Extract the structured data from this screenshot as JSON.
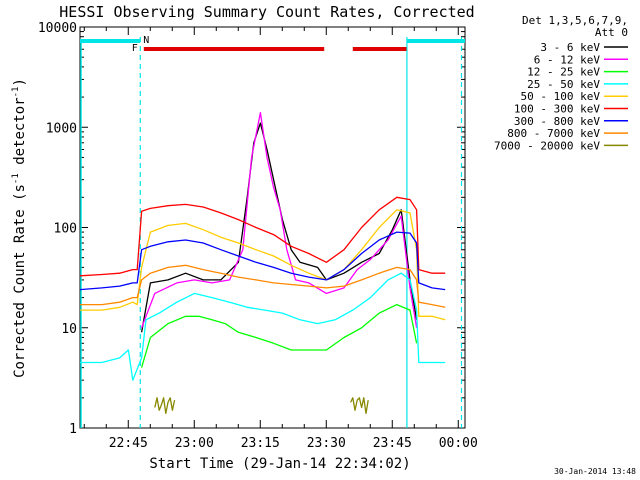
{
  "chart_data": {
    "type": "line",
    "title": "HESSI Observing Summary Count Rates, Corrected",
    "xlabel": "Start Time (29-Jan-14 22:34:02)",
    "ylabel_main": "Corrected Count Rate (s",
    "ylabel_sup1": "-1",
    "ylabel_mid": " detector",
    "ylabel_sup2": "-1",
    "ylabel_end": ")",
    "yscale": "log",
    "ylim": [
      1,
      10000
    ],
    "xlim_minutes": [
      0,
      87.5
    ],
    "x_ticks": [
      {
        "label": "22:45",
        "minute": 10.97
      },
      {
        "label": "23:00",
        "minute": 25.97
      },
      {
        "label": "23:15",
        "minute": 40.97
      },
      {
        "label": "23:30",
        "minute": 55.97
      },
      {
        "label": "23:45",
        "minute": 70.97
      },
      {
        "label": "00:00",
        "minute": 85.97
      }
    ],
    "y_ticks": [
      {
        "label": "1",
        "value": 1
      },
      {
        "label": "10",
        "value": 10
      },
      {
        "label": "100",
        "value": 100
      },
      {
        "label": "1000",
        "value": 1000
      },
      {
        "label": "10000",
        "value": 10000
      }
    ],
    "legend_header_1": "Det 1,3,5,6,7,9,",
    "legend_header_2": "Att 0",
    "legend_position": "right",
    "series": [
      {
        "name": "3 - 6 keV",
        "color": "#000000",
        "points": [
          [
            0,
            null
          ],
          [
            13,
            null
          ],
          [
            14,
            9
          ],
          [
            16,
            28
          ],
          [
            20,
            30
          ],
          [
            24,
            35
          ],
          [
            28,
            30
          ],
          [
            32,
            30
          ],
          [
            36,
            45
          ],
          [
            38,
            200
          ],
          [
            39.5,
            700
          ],
          [
            41,
            1100
          ],
          [
            42.5,
            600
          ],
          [
            44,
            300
          ],
          [
            46,
            120
          ],
          [
            48,
            60
          ],
          [
            50,
            45
          ],
          [
            54,
            40
          ],
          [
            56,
            30
          ],
          [
            60,
            35
          ],
          [
            64,
            45
          ],
          [
            68,
            55
          ],
          [
            71,
            95
          ],
          [
            73,
            150
          ],
          [
            75,
            30
          ],
          [
            76.5,
            12
          ],
          [
            79,
            null
          ]
        ]
      },
      {
        "name": "6 - 12 keV",
        "color": "#ff00ff",
        "points": [
          [
            0,
            null
          ],
          [
            13,
            null
          ],
          [
            14,
            10
          ],
          [
            17,
            22
          ],
          [
            22,
            28
          ],
          [
            26,
            30
          ],
          [
            30,
            28
          ],
          [
            34,
            30
          ],
          [
            37,
            60
          ],
          [
            39,
            500
          ],
          [
            41,
            1400
          ],
          [
            42.5,
            500
          ],
          [
            44,
            250
          ],
          [
            45.5,
            150
          ],
          [
            47,
            60
          ],
          [
            49,
            30
          ],
          [
            52,
            28
          ],
          [
            56,
            22
          ],
          [
            60,
            25
          ],
          [
            63,
            38
          ],
          [
            66,
            48
          ],
          [
            70,
            75
          ],
          [
            73,
            130
          ],
          [
            75,
            25
          ],
          [
            76.5,
            10
          ],
          [
            79,
            null
          ]
        ]
      },
      {
        "name": "12 - 25 keV",
        "color": "#00ff00",
        "points": [
          [
            0,
            null
          ],
          [
            13,
            null
          ],
          [
            14,
            4
          ],
          [
            16,
            8
          ],
          [
            20,
            11
          ],
          [
            24,
            13
          ],
          [
            27,
            13
          ],
          [
            30,
            12
          ],
          [
            33,
            11
          ],
          [
            36,
            9
          ],
          [
            40,
            8
          ],
          [
            44,
            7
          ],
          [
            48,
            6
          ],
          [
            52,
            6
          ],
          [
            56,
            6
          ],
          [
            60,
            8
          ],
          [
            64,
            10
          ],
          [
            68,
            14
          ],
          [
            72,
            17
          ],
          [
            75,
            15
          ],
          [
            76.5,
            7
          ],
          [
            79,
            null
          ]
        ]
      },
      {
        "name": "25 - 50 keV",
        "color": "#00ffff",
        "points": [
          [
            0,
            4.5
          ],
          [
            5,
            4.5
          ],
          [
            9,
            5
          ],
          [
            11,
            6
          ],
          [
            12,
            3
          ],
          [
            14,
            5
          ],
          [
            15,
            12
          ],
          [
            18,
            14
          ],
          [
            22,
            18
          ],
          [
            26,
            22
          ],
          [
            30,
            20
          ],
          [
            34,
            18
          ],
          [
            38,
            16
          ],
          [
            42,
            15
          ],
          [
            46,
            14
          ],
          [
            50,
            12
          ],
          [
            54,
            11
          ],
          [
            58,
            12
          ],
          [
            62,
            15
          ],
          [
            66,
            20
          ],
          [
            70,
            30
          ],
          [
            73,
            35
          ],
          [
            75,
            30
          ],
          [
            76.5,
            15
          ],
          [
            77,
            4.5
          ],
          [
            80,
            4.5
          ],
          [
            83,
            4.5
          ]
        ]
      },
      {
        "name": "50 - 100 keV",
        "color": "#ffcc00",
        "points": [
          [
            0,
            15
          ],
          [
            5,
            15
          ],
          [
            9,
            16
          ],
          [
            12,
            18
          ],
          [
            13,
            17
          ],
          [
            14,
            40
          ],
          [
            16,
            90
          ],
          [
            20,
            105
          ],
          [
            24,
            110
          ],
          [
            28,
            95
          ],
          [
            32,
            80
          ],
          [
            36,
            70
          ],
          [
            40,
            60
          ],
          [
            44,
            52
          ],
          [
            48,
            42
          ],
          [
            52,
            35
          ],
          [
            56,
            30
          ],
          [
            60,
            38
          ],
          [
            64,
            60
          ],
          [
            68,
            100
          ],
          [
            72,
            150
          ],
          [
            75,
            140
          ],
          [
            76.5,
            60
          ],
          [
            77,
            13
          ],
          [
            80,
            13
          ],
          [
            83,
            12
          ]
        ]
      },
      {
        "name": "100 - 300 keV",
        "color": "#ff0000",
        "points": [
          [
            0,
            33
          ],
          [
            5,
            34
          ],
          [
            9,
            35
          ],
          [
            12,
            38
          ],
          [
            13,
            38
          ],
          [
            14,
            145
          ],
          [
            16,
            155
          ],
          [
            20,
            165
          ],
          [
            24,
            170
          ],
          [
            28,
            160
          ],
          [
            32,
            140
          ],
          [
            36,
            120
          ],
          [
            40,
            100
          ],
          [
            44,
            85
          ],
          [
            48,
            65
          ],
          [
            52,
            55
          ],
          [
            56,
            45
          ],
          [
            60,
            60
          ],
          [
            64,
            100
          ],
          [
            68,
            150
          ],
          [
            72,
            200
          ],
          [
            75,
            190
          ],
          [
            76.5,
            150
          ],
          [
            77,
            38
          ],
          [
            80,
            35
          ],
          [
            83,
            35
          ]
        ]
      },
      {
        "name": "300 - 800 keV",
        "color": "#0000ff",
        "points": [
          [
            0,
            24
          ],
          [
            5,
            25
          ],
          [
            9,
            26
          ],
          [
            12,
            28
          ],
          [
            13,
            28
          ],
          [
            14,
            60
          ],
          [
            16,
            65
          ],
          [
            20,
            72
          ],
          [
            24,
            75
          ],
          [
            28,
            70
          ],
          [
            32,
            60
          ],
          [
            36,
            52
          ],
          [
            40,
            45
          ],
          [
            44,
            40
          ],
          [
            48,
            35
          ],
          [
            52,
            32
          ],
          [
            56,
            30
          ],
          [
            60,
            38
          ],
          [
            64,
            55
          ],
          [
            68,
            75
          ],
          [
            72,
            90
          ],
          [
            75,
            88
          ],
          [
            76.5,
            70
          ],
          [
            77,
            28
          ],
          [
            80,
            25
          ],
          [
            83,
            24
          ]
        ]
      },
      {
        "name": "800 - 7000 keV",
        "color": "#ff8800",
        "points": [
          [
            0,
            17
          ],
          [
            5,
            17
          ],
          [
            9,
            18
          ],
          [
            12,
            20
          ],
          [
            13,
            20
          ],
          [
            14,
            30
          ],
          [
            16,
            35
          ],
          [
            20,
            40
          ],
          [
            24,
            42
          ],
          [
            28,
            38
          ],
          [
            32,
            35
          ],
          [
            36,
            32
          ],
          [
            40,
            30
          ],
          [
            44,
            28
          ],
          [
            48,
            27
          ],
          [
            52,
            26
          ],
          [
            56,
            25
          ],
          [
            60,
            26
          ],
          [
            64,
            30
          ],
          [
            68,
            35
          ],
          [
            72,
            40
          ],
          [
            75,
            38
          ],
          [
            76.5,
            30
          ],
          [
            77,
            18
          ],
          [
            80,
            17
          ],
          [
            83,
            16
          ]
        ]
      },
      {
        "name": "7000 - 20000 keV",
        "color": "#888800",
        "points": [
          [
            16,
            null
          ],
          [
            17,
            1.6
          ],
          [
            17.5,
            2
          ],
          [
            18,
            1.5
          ],
          [
            18.5,
            1.7
          ],
          [
            19,
            2
          ],
          [
            19.5,
            1.4
          ],
          [
            20,
            1.8
          ],
          [
            20.5,
            2
          ],
          [
            21,
            1.5
          ],
          [
            21.5,
            1.9
          ],
          [
            22,
            null
          ],
          [
            61,
            null
          ],
          [
            61.5,
            1.8
          ],
          [
            62,
            2
          ],
          [
            62.5,
            1.5
          ],
          [
            63,
            1.9
          ],
          [
            63.5,
            2
          ],
          [
            64,
            1.6
          ],
          [
            64.5,
            2
          ],
          [
            65,
            1.4
          ],
          [
            65.5,
            1.9
          ],
          [
            66,
            null
          ]
        ]
      }
    ],
    "markers": {
      "flag_label_N": "N",
      "flag_label_F": "F",
      "night_segments_minutes": [
        [
          0,
          13.7
        ],
        [
          74.3,
          87.5
        ]
      ],
      "flare_segments_minutes": [
        [
          14.5,
          55.5
        ],
        [
          62,
          74.2
        ]
      ],
      "attenuator_lines_minutes": [
        13.7,
        74.3,
        86.7
      ]
    }
  },
  "footer": {
    "timestamp": "30-Jan-2014 13:48"
  }
}
